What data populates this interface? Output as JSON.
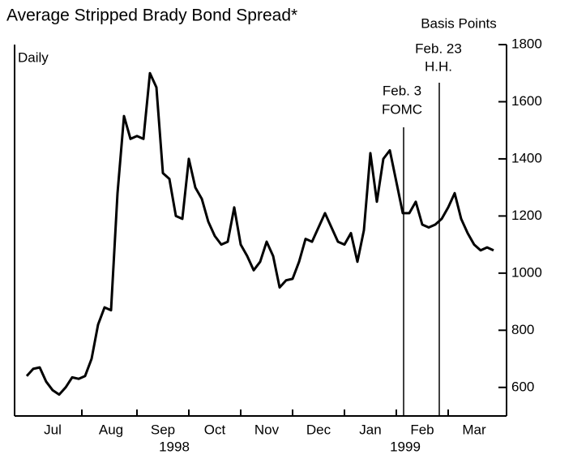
{
  "chart_data": {
    "type": "line",
    "title": "Average Stripped Brady Bond Spread*",
    "y_axis_label": "Basis Points",
    "subtitle": "Daily",
    "years": [
      "1998",
      "1999"
    ],
    "annotations": [
      [
        "Feb. 3",
        "FOMC"
      ],
      [
        "Feb. 23",
        "H.H."
      ]
    ],
    "categories": [
      null,
      null,
      null,
      null,
      "Jul",
      null,
      null,
      null,
      null,
      null,
      null,
      null,
      null,
      "Aug",
      null,
      null,
      null,
      null,
      null,
      null,
      null,
      "Sep",
      null,
      null,
      null,
      null,
      null,
      null,
      null,
      "Oct",
      null,
      null,
      null,
      null,
      null,
      null,
      null,
      "Nov",
      null,
      null,
      null,
      null,
      null,
      null,
      null,
      "Dec",
      null,
      null,
      null,
      null,
      null,
      null,
      null,
      "Jan",
      null,
      null,
      null,
      null,
      null,
      null,
      null,
      "Feb",
      null,
      null,
      null,
      null,
      null,
      null,
      null,
      "Mar",
      null,
      null,
      null
    ],
    "series": [
      {
        "name": "Spread",
        "color": "#000000",
        "values": [
          640,
          665,
          670,
          620,
          590,
          575,
          600,
          635,
          630,
          640,
          700,
          820,
          880,
          870,
          1280,
          1550,
          1470,
          1480,
          1470,
          1700,
          1650,
          1350,
          1330,
          1200,
          1190,
          1400,
          1300,
          1260,
          1180,
          1130,
          1100,
          1110,
          1230,
          1100,
          1060,
          1010,
          1040,
          1110,
          1060,
          950,
          975,
          980,
          1040,
          1120,
          1110,
          1160,
          1210,
          1160,
          1110,
          1100,
          1140,
          1040,
          1150,
          1420,
          1250,
          1400,
          1430,
          1320,
          1210,
          1210,
          1250,
          1170,
          1160,
          1170,
          1190,
          1230,
          1280,
          1190,
          1140,
          1100,
          1080,
          1090,
          1080
        ]
      }
    ],
    "ylim": [
      500,
      1800
    ],
    "yticks": [
      600,
      800,
      1000,
      1200,
      1400,
      1600,
      1800
    ]
  }
}
